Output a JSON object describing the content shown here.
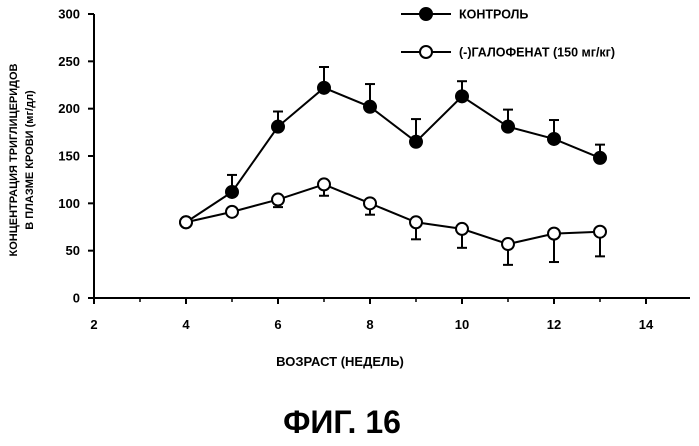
{
  "figure_label": "ФИГ. 16",
  "chart_data": {
    "type": "line",
    "xlabel": "ВОЗРАСТ (НЕДЕЛЬ)",
    "ylabel_line1": "КОНЦЕНТРАЦИЯ ТРИГЛИЦЕРИДОВ",
    "ylabel_line2": "В ПЛАЗМЕ КРОВИ (мг/дл)",
    "xlim": [
      2,
      15
    ],
    "ylim": [
      0,
      300
    ],
    "xticks": [
      2,
      4,
      6,
      8,
      10,
      12,
      14
    ],
    "yticks": [
      0,
      50,
      100,
      150,
      200,
      250,
      300
    ],
    "legend_position": "top-right",
    "series": [
      {
        "name": "КОНТРОЛЬ",
        "marker": "filled-circle",
        "color": "#000000",
        "x": [
          4,
          5,
          6,
          7,
          8,
          9,
          10,
          11,
          12,
          13
        ],
        "y": [
          80,
          112,
          181,
          222,
          202,
          165,
          213,
          181,
          168,
          148
        ],
        "error": [
          0,
          18,
          16,
          22,
          24,
          24,
          16,
          18,
          20,
          14
        ]
      },
      {
        "name": "(-)ГАЛОФЕНАТ (150 мг/кг)",
        "marker": "open-circle",
        "color": "#000000",
        "x": [
          4,
          5,
          6,
          7,
          8,
          9,
          10,
          11,
          12,
          13
        ],
        "y": [
          80,
          91,
          104,
          120,
          100,
          80,
          73,
          57,
          68,
          70
        ],
        "error": [
          0,
          0,
          8,
          12,
          12,
          18,
          20,
          22,
          30,
          26
        ]
      }
    ]
  }
}
